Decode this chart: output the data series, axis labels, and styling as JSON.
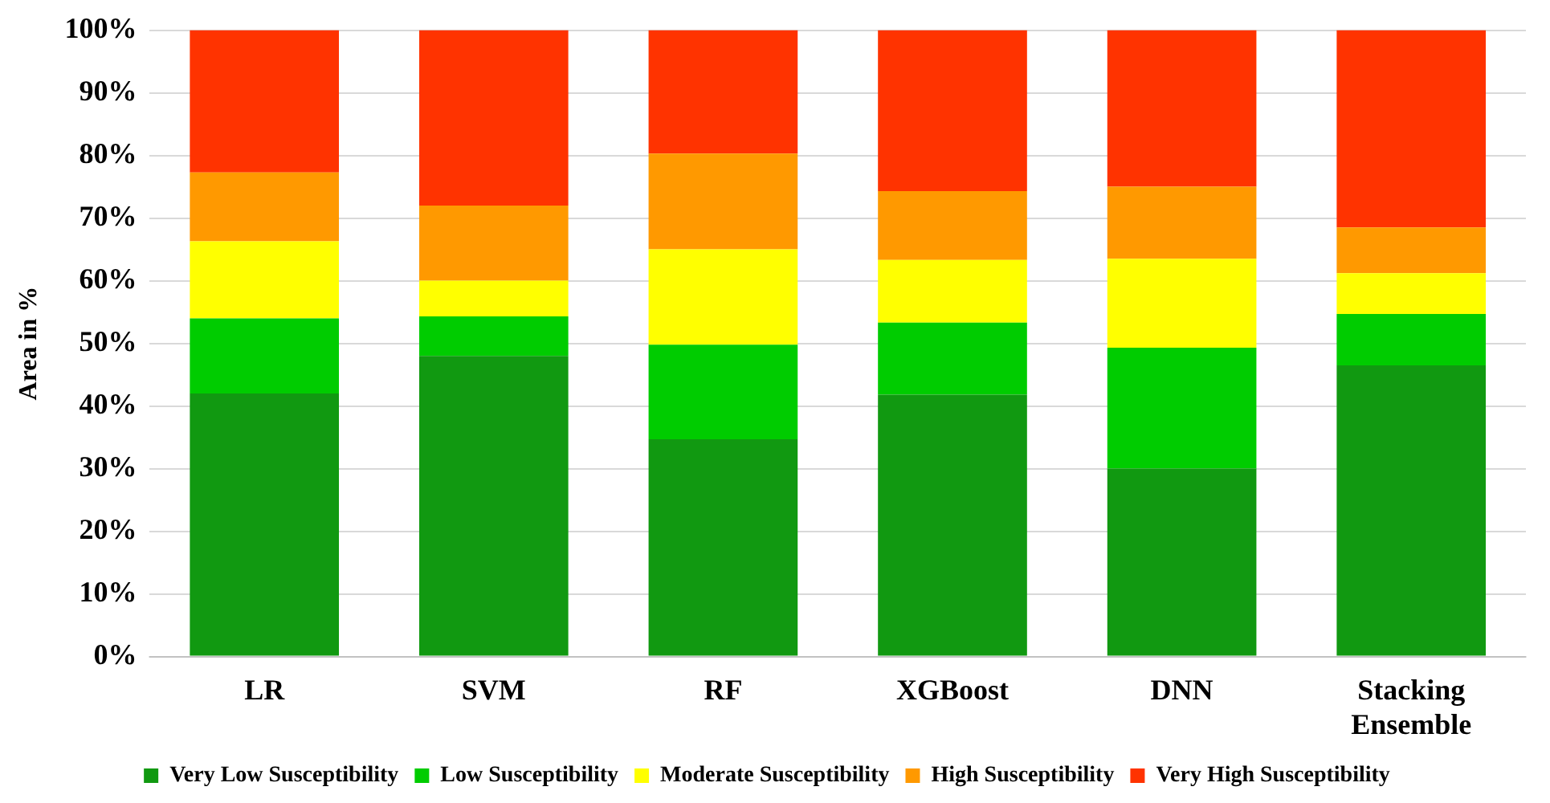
{
  "chart_data": {
    "type": "bar",
    "stacked": true,
    "ylabel": "Area in %",
    "categories": [
      "LR",
      "SVM",
      "RF",
      "XGBoost",
      "DNN",
      "Stacking Ensemble"
    ],
    "series": [
      {
        "name": "Very Low Susceptibility",
        "color": "#119911",
        "values": [
          42,
          48,
          34.7,
          41.8,
          30,
          46.5
        ]
      },
      {
        "name": "Low Susceptibility",
        "color": "#00cc00",
        "values": [
          12,
          6.3,
          15.1,
          11.5,
          19.3,
          8.2
        ]
      },
      {
        "name": "Moderate Susceptibility",
        "color": "#ffff00",
        "values": [
          12.3,
          5.7,
          15.2,
          10,
          14.2,
          6.5
        ]
      },
      {
        "name": "High Susceptibility",
        "color": "#ff9900",
        "values": [
          11,
          12,
          15.3,
          11,
          11.5,
          7.3
        ]
      },
      {
        "name": "Very High Susceptibility",
        "color": "#ff3300",
        "values": [
          22.7,
          28,
          19.7,
          25.7,
          25,
          31.5
        ]
      }
    ],
    "ylim": [
      0,
      100
    ],
    "yticks": [
      {
        "value": 0,
        "label": "0%"
      },
      {
        "value": 10,
        "label": "10%"
      },
      {
        "value": 20,
        "label": "20%"
      },
      {
        "value": 30,
        "label": "30%"
      },
      {
        "value": 40,
        "label": "40%"
      },
      {
        "value": 50,
        "label": "50%"
      },
      {
        "value": 60,
        "label": "60%"
      },
      {
        "value": 70,
        "label": "70%"
      },
      {
        "value": 80,
        "label": "80%"
      },
      {
        "value": 90,
        "label": "90%"
      },
      {
        "value": 100,
        "label": "100%"
      }
    ],
    "grid": "y",
    "legend": "bottom"
  }
}
